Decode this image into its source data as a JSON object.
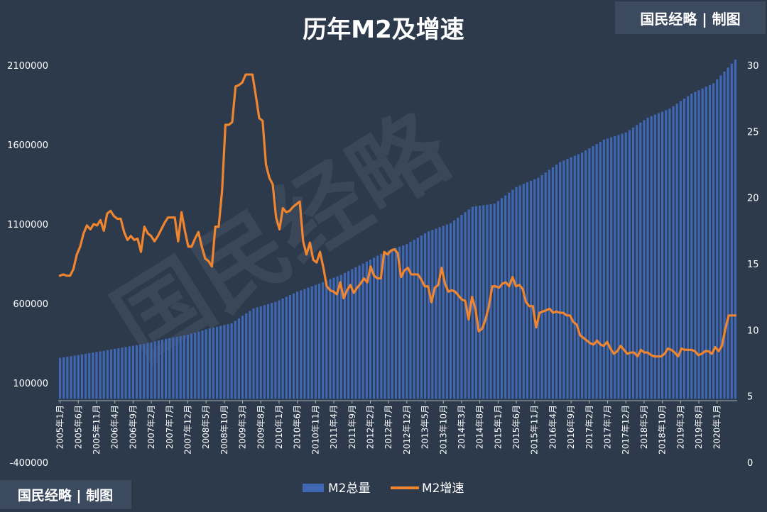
{
  "chart_data": {
    "type": "bar",
    "title": "历年M2及增速",
    "watermark": "国民经略",
    "badge_top": "国民经略 | 制图",
    "badge_bottom": "国民经略 | 制图",
    "colors": {
      "background": "#2c3a4c",
      "bars": "#3f67b3",
      "bar_highlight": "#5b84d3",
      "line": "#f0852f",
      "text": "#ffffff",
      "watermark": "#ffffff"
    },
    "x_start": "2005-01",
    "x_end": "2020-06",
    "x_tick_labels": [
      "2005年1月",
      "2005年6月",
      "2005年11月",
      "2006年4月",
      "2006年9月",
      "2007年2月",
      "2007年7月",
      "2007年12月",
      "2008年5月",
      "2008年10月",
      "2009年3月",
      "2009年8月",
      "2010年1月",
      "2010年6月",
      "2010年11月",
      "2011年4月",
      "2011年9月",
      "2012年2月",
      "2012年7月",
      "2012年12月",
      "2013年5月",
      "2013年10月",
      "2014年3月",
      "2014年8月",
      "2015年1月",
      "2015年6月",
      "2015年11月",
      "2016年4月",
      "2016年9月",
      "2017年2月",
      "2017年7月",
      "2017年12月",
      "2018年5月",
      "2018年10月",
      "2019年3月",
      "2019年8月",
      "2020年1月"
    ],
    "y_left_ticks": [
      "2100000",
      "1600000",
      "1100000",
      "600000",
      "100000",
      "-400000"
    ],
    "y_left_range": [
      -400000,
      2100000
    ],
    "y_right_ticks": [
      "30",
      "25",
      "20",
      "15",
      "10",
      "5",
      "0"
    ],
    "y_right_range": [
      0,
      30
    ],
    "legend": [
      {
        "name": "M2总量",
        "kind": "bar"
      },
      {
        "name": "M2增速",
        "kind": "line"
      }
    ],
    "series": [
      {
        "name": "M2总量",
        "kind": "bar",
        "axis": "left",
        "anchors": [
          [
            "2005-01",
            257708
          ],
          [
            "2005-06",
            275785
          ],
          [
            "2005-12",
            298756
          ],
          [
            "2006-06",
            322756
          ],
          [
            "2006-12",
            345604
          ],
          [
            "2007-06",
            377832
          ],
          [
            "2007-12",
            403442
          ],
          [
            "2008-06",
            443141
          ],
          [
            "2008-12",
            475167
          ],
          [
            "2009-06",
            568916
          ],
          [
            "2009-12",
            610225
          ],
          [
            "2010-06",
            673921
          ],
          [
            "2010-12",
            725852
          ],
          [
            "2011-06",
            780821
          ],
          [
            "2011-12",
            851591
          ],
          [
            "2012-06",
            924991
          ],
          [
            "2012-12",
            974149
          ],
          [
            "2013-06",
            1054404
          ],
          [
            "2013-12",
            1106525
          ],
          [
            "2014-06",
            1209587
          ],
          [
            "2014-12",
            1228375
          ],
          [
            "2015-06",
            1333375
          ],
          [
            "2015-12",
            1392278
          ],
          [
            "2016-06",
            1490492
          ],
          [
            "2016-12",
            1550067
          ],
          [
            "2017-06",
            1631283
          ],
          [
            "2017-12",
            1676769
          ],
          [
            "2018-06",
            1770178
          ],
          [
            "2018-12",
            1826744
          ],
          [
            "2019-06",
            1921360
          ],
          [
            "2019-12",
            1986489
          ],
          [
            "2020-06",
            2134949
          ]
        ]
      },
      {
        "name": "M2增速",
        "kind": "line",
        "axis": "right",
        "values": [
          14.1,
          14.2,
          14.1,
          14.1,
          14.6,
          15.7,
          16.3,
          17.3,
          17.9,
          17.6,
          18.0,
          17.9,
          18.3,
          17.5,
          18.8,
          19.0,
          18.6,
          18.4,
          18.4,
          17.4,
          16.8,
          17.1,
          16.8,
          16.9,
          15.9,
          17.8,
          17.3,
          17.1,
          16.7,
          17.1,
          17.6,
          18.1,
          18.5,
          18.5,
          18.5,
          16.7,
          18.9,
          17.5,
          16.3,
          16.3,
          16.9,
          17.4,
          16.3,
          15.4,
          15.2,
          14.8,
          17.8,
          17.8,
          20.5,
          25.5,
          25.5,
          25.7,
          28.4,
          28.5,
          28.7,
          29.3,
          29.3,
          29.3,
          27.7,
          26.0,
          25.8,
          22.5,
          21.5,
          21.0,
          18.5,
          17.6,
          19.2,
          18.9,
          19.0,
          19.3,
          19.5,
          19.7,
          16.7,
          15.7,
          16.6,
          15.3,
          15.1,
          15.9,
          14.7,
          13.3,
          13.0,
          12.9,
          12.7,
          13.6,
          12.4,
          13.0,
          13.4,
          12.8,
          13.2,
          13.5,
          13.9,
          13.6,
          14.8,
          14.1,
          13.9,
          13.9,
          15.9,
          15.7,
          16.0,
          16.1,
          15.8,
          14.0,
          14.5,
          14.7,
          14.2,
          14.2,
          14.2,
          13.8,
          13.3,
          13.3,
          12.1,
          13.2,
          13.4,
          14.7,
          13.5,
          12.9,
          13.0,
          12.9,
          12.6,
          12.3,
          12.2,
          10.8,
          12.5,
          11.6,
          9.9,
          10.1,
          10.8,
          11.8,
          13.3,
          13.3,
          13.2,
          13.5,
          13.6,
          13.3,
          14.0,
          13.3,
          13.4,
          13.1,
          12.1,
          11.8,
          11.8,
          10.2,
          11.3,
          11.4,
          11.5,
          11.6,
          11.3,
          11.4,
          11.3,
          11.3,
          11.1,
          11.1,
          10.6,
          10.4,
          9.6,
          9.4,
          9.2,
          9.0,
          8.9,
          9.2,
          8.9,
          8.8,
          9.1,
          8.6,
          8.2,
          8.4,
          8.8,
          8.5,
          8.2,
          8.3,
          8.3,
          8.0,
          8.5,
          8.3,
          8.3,
          8.1,
          8.0,
          8.0,
          8.0,
          8.2,
          8.6,
          8.5,
          8.3,
          8.0,
          8.6,
          8.5,
          8.5,
          8.5,
          8.4,
          8.1,
          8.2,
          8.4,
          8.4,
          8.2,
          8.7,
          8.4,
          8.8,
          10.1,
          11.1,
          11.1,
          11.1
        ]
      }
    ]
  }
}
